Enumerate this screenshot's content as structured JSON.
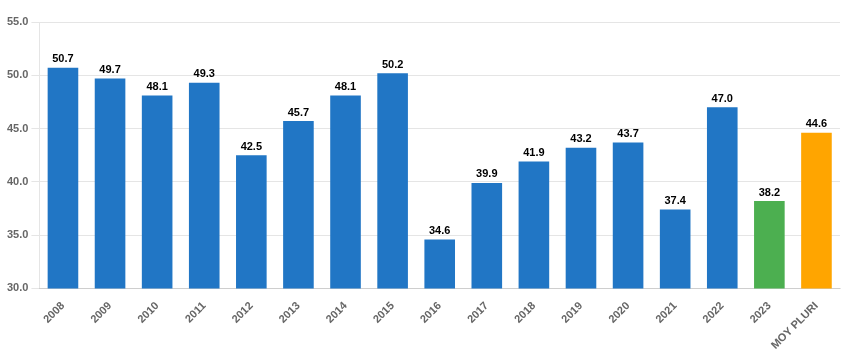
{
  "chart_data": {
    "type": "bar",
    "categories": [
      "2008",
      "2009",
      "2010",
      "2011",
      "2012",
      "2013",
      "2014",
      "2015",
      "2016",
      "2017",
      "2018",
      "2019",
      "2020",
      "2021",
      "2022",
      "2023",
      "MOY PLURI"
    ],
    "values": [
      50.7,
      49.7,
      48.1,
      49.3,
      42.5,
      45.7,
      48.1,
      50.2,
      34.6,
      39.9,
      41.9,
      43.2,
      43.7,
      37.4,
      47.0,
      38.2,
      44.6
    ],
    "value_labels": [
      "50.7",
      "49.7",
      "48.1",
      "49.3",
      "42.5",
      "45.7",
      "48.1",
      "50.2",
      "34.6",
      "39.9",
      "41.9",
      "43.2",
      "43.7",
      "37.4",
      "47.0",
      "38.2",
      "44.6"
    ],
    "colors": [
      "#2176C5",
      "#2176C5",
      "#2176C5",
      "#2176C5",
      "#2176C5",
      "#2176C5",
      "#2176C5",
      "#2176C5",
      "#2176C5",
      "#2176C5",
      "#2176C5",
      "#2176C5",
      "#2176C5",
      "#2176C5",
      "#2176C5",
      "#4CAF50",
      "#FFA500"
    ],
    "ylim": [
      30.0,
      55.0
    ],
    "yticks": [
      {
        "value": 30.0,
        "label": "30.0"
      },
      {
        "value": 35.0,
        "label": "35.0"
      },
      {
        "value": 40.0,
        "label": "40.0"
      },
      {
        "value": 45.0,
        "label": "45.0"
      },
      {
        "value": 50.0,
        "label": "50.0"
      },
      {
        "value": 55.0,
        "label": "55.0"
      }
    ],
    "grid": true,
    "data_labels": true
  }
}
